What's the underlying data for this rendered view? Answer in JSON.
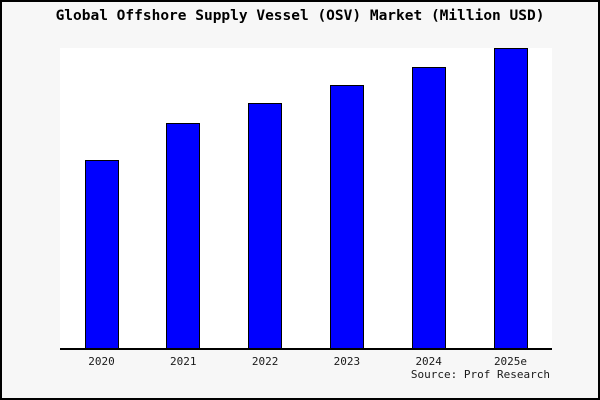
{
  "window": {
    "background_color": "#f7f7f7",
    "frame_border_color": "#000000",
    "plot_background_color": "#ffffff"
  },
  "title": "Global Offshore Supply Vessel (OSV) Market (Million USD)",
  "source": "Source: Prof Research",
  "chart_data": {
    "type": "bar",
    "title": "Global Offshore Supply Vessel (OSV) Market (Million USD)",
    "categories": [
      "2020",
      "2021",
      "2022",
      "2023",
      "2024",
      "2025e"
    ],
    "values_relative_pct_of_max": [
      62.6,
      74.9,
      81.8,
      87.6,
      93.6,
      100
    ],
    "ylabel": "",
    "xlabel": "",
    "y_axis_ticks": "none shown",
    "grid": false,
    "legend": "none",
    "bar_fill_color": "#0000ff",
    "bar_edge_color": "#000000",
    "annotation": "Source: Prof Research"
  }
}
